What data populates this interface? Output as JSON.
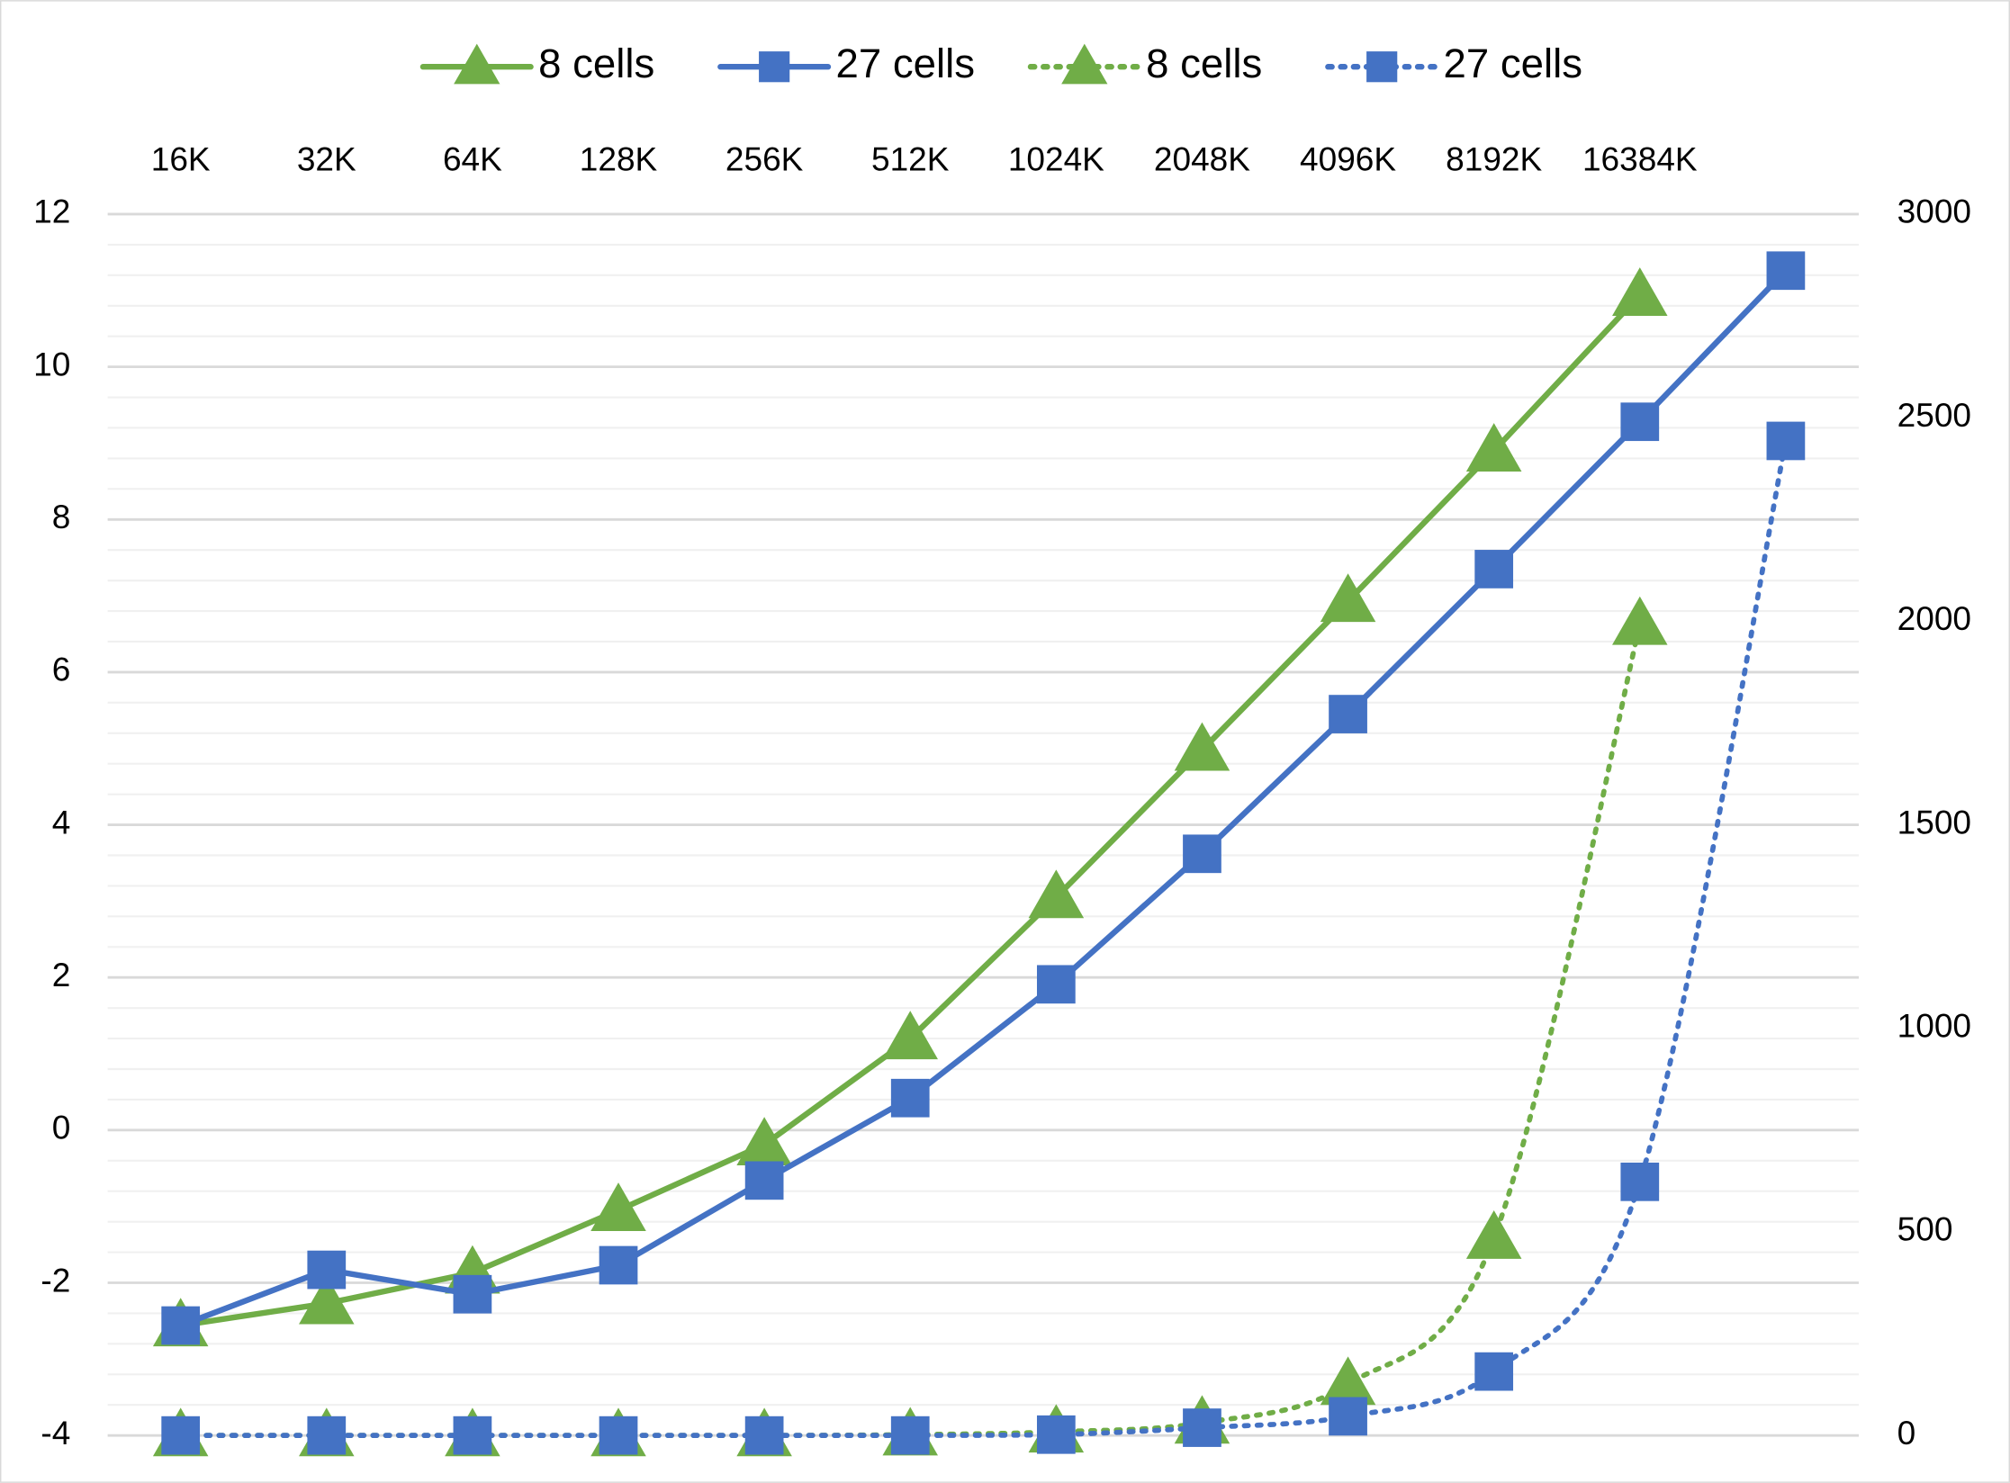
{
  "chart_data": {
    "type": "line",
    "categories": [
      "16K",
      "32K",
      "64K",
      "128K",
      "256K",
      "512K",
      "1024K",
      "2048K",
      "4096K",
      "8192K",
      "16384K",
      null
    ],
    "series": [
      {
        "name": "8 cells",
        "color": "#70ad47",
        "marker": "triangle",
        "line_style": "solid",
        "axis": "y",
        "values": [
          -2.56,
          -2.27,
          -1.87,
          -1.05,
          -0.19,
          1.2,
          3.05,
          4.98,
          6.93,
          8.9,
          10.94,
          null
        ]
      },
      {
        "name": "27 cells",
        "color": "#4472c4",
        "marker": "square",
        "line_style": "solid",
        "axis": "y",
        "values": [
          -2.56,
          -1.83,
          -2.15,
          -1.77,
          -0.66,
          0.42,
          1.91,
          3.62,
          5.45,
          7.35,
          9.28,
          11.26
        ]
      },
      {
        "name": "8 cells",
        "color": "#70ad47",
        "marker": "triangle",
        "line_style": "dotted",
        "axis": "y2",
        "values": [
          0,
          0,
          0,
          0,
          0,
          2,
          9,
          31,
          126,
          485,
          1993,
          null
        ]
      },
      {
        "name": "27 cells",
        "color": "#4472c4",
        "marker": "square",
        "line_style": "dotted",
        "axis": "y2",
        "values": [
          0,
          0,
          0,
          0,
          0,
          0,
          2,
          19,
          47,
          157,
          623,
          2443
        ]
      }
    ],
    "ylim": [
      -4,
      12
    ],
    "yticks": [
      -4,
      -2,
      0,
      2,
      4,
      6,
      8,
      10,
      12
    ],
    "y2lim": [
      0,
      3000
    ],
    "y2ticks": [
      0,
      500,
      1000,
      1500,
      2000,
      2500,
      3000
    ],
    "grid": true,
    "legend": "top",
    "x_labels": "top"
  }
}
